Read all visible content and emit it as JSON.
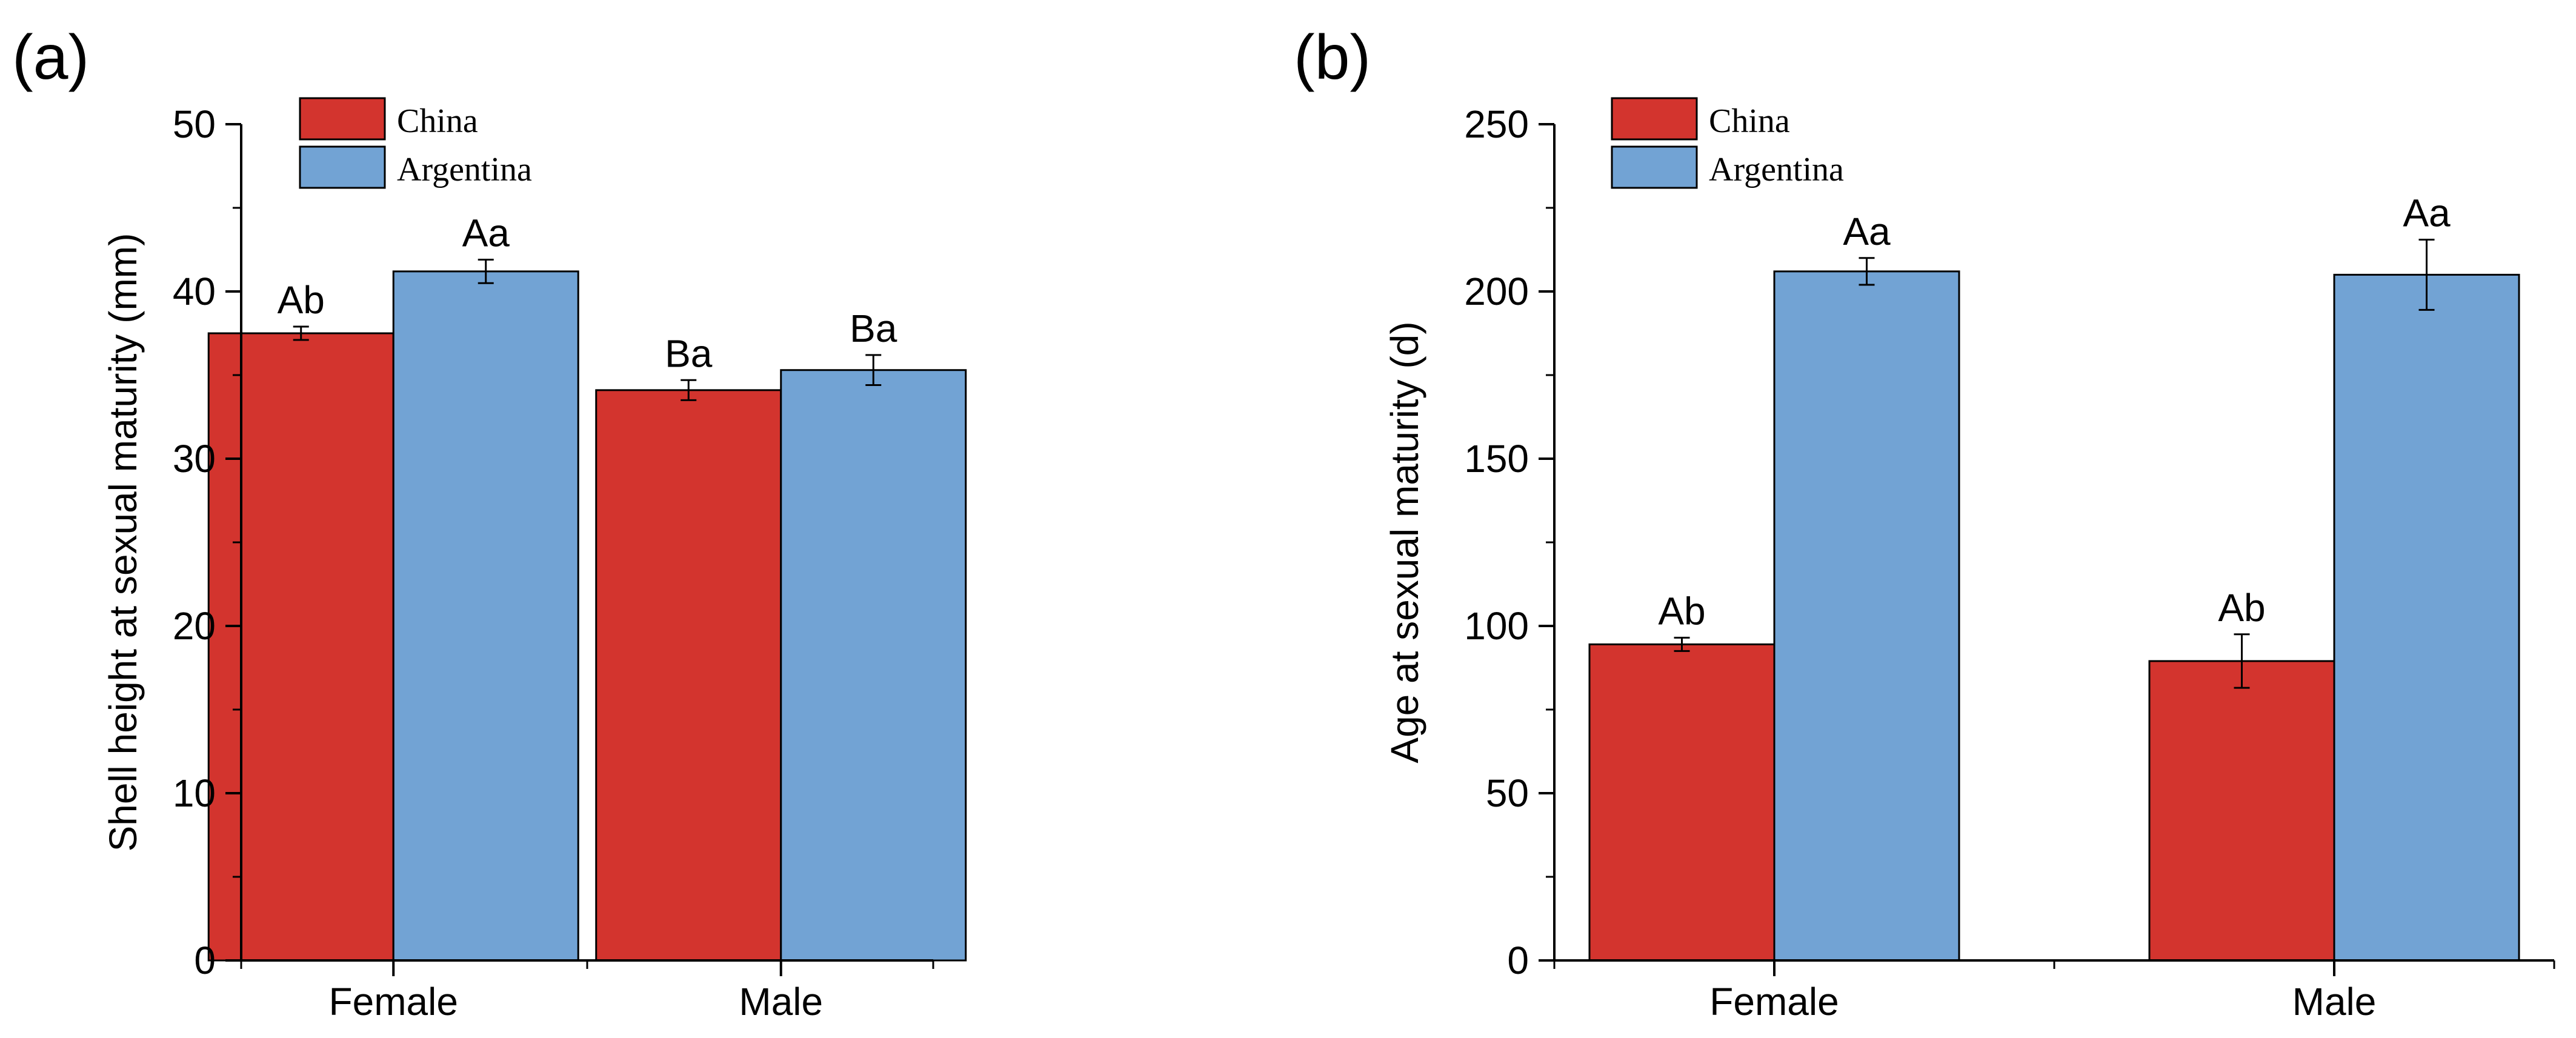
{
  "colors": {
    "china": "#d3342e",
    "argentina": "#72a3d4"
  },
  "chart_data": [
    {
      "type": "bar",
      "panel_label": "(a)",
      "ylabel": "Shell height at sexual maturity (mm)",
      "xlabel": "",
      "ylim": [
        0,
        50
      ],
      "y_ticks": [
        0,
        10,
        20,
        30,
        40,
        50
      ],
      "categories": [
        "Female",
        "Male"
      ],
      "series": [
        {
          "name": "China",
          "values": [
            37.5,
            34.1
          ],
          "errors": [
            0.4,
            0.6
          ],
          "labels": [
            "Ab",
            "Ba"
          ]
        },
        {
          "name": "Argentina",
          "values": [
            41.2,
            35.3
          ],
          "errors": [
            0.7,
            0.9
          ],
          "labels": [
            "Aa",
            "Ba"
          ]
        }
      ],
      "legend": [
        "China",
        "Argentina"
      ],
      "legend_position": "top-left"
    },
    {
      "type": "bar",
      "panel_label": "(b)",
      "ylabel": "Age at sexual maturity (d)",
      "xlabel": "",
      "ylim": [
        0,
        250
      ],
      "y_ticks": [
        0,
        50,
        100,
        150,
        200,
        250
      ],
      "categories": [
        "Female",
        "Male"
      ],
      "series": [
        {
          "name": "China",
          "values": [
            94.5,
            89.5
          ],
          "errors": [
            2.0,
            8.0
          ],
          "labels": [
            "Ab",
            "Ab"
          ]
        },
        {
          "name": "Argentina",
          "values": [
            206,
            205
          ],
          "errors": [
            4.0,
            10.5
          ],
          "labels": [
            "Aa",
            "Aa"
          ]
        }
      ],
      "legend": [
        "China",
        "Argentina"
      ],
      "legend_position": "top-left"
    }
  ]
}
